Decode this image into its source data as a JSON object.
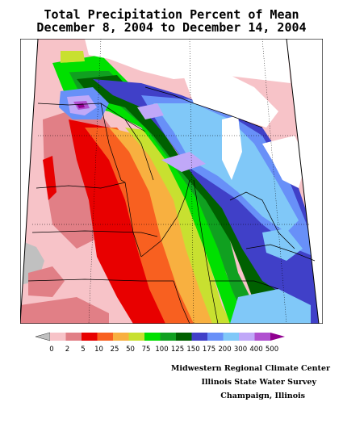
{
  "title": {
    "line1": "Total Precipitation Percent of Mean",
    "line2": "December 8, 2004 to December 14, 2004"
  },
  "legend": {
    "ticks": [
      "0",
      "2",
      "5",
      "10",
      "25",
      "50",
      "75",
      "100",
      "125",
      "150",
      "175",
      "200",
      "300",
      "400",
      "500"
    ],
    "colors": [
      "#c0c0c0",
      "#f7c3c8",
      "#e17f86",
      "#e80000",
      "#f86020",
      "#f8b040",
      "#c8e030",
      "#00e000",
      "#10a020",
      "#006000",
      "#4040c8",
      "#6890f8",
      "#80c8f8",
      "#c0a8f8",
      "#b050d0",
      "#900090"
    ]
  },
  "credits": {
    "line1": "Midwestern Regional Climate Center",
    "line2": "Illinois State Water Survey",
    "line3": "Champaign, Illinois"
  }
}
